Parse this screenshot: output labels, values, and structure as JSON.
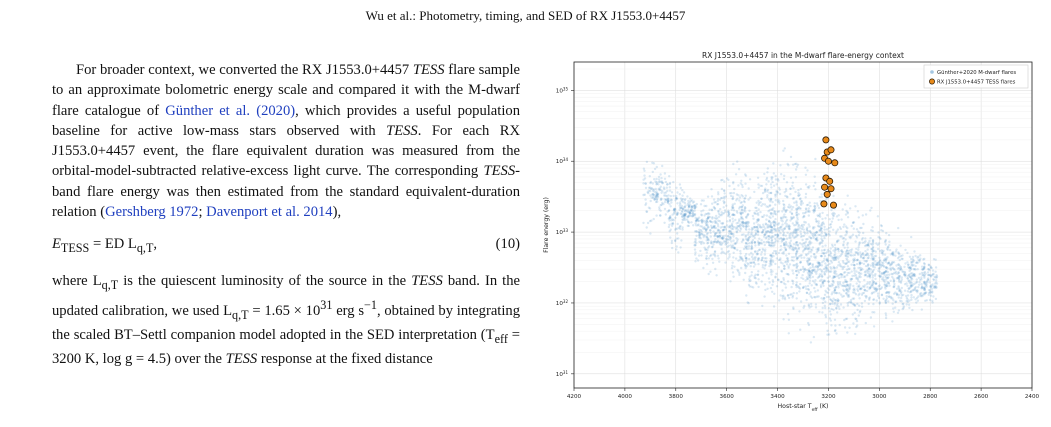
{
  "running_head": "Wu et al.: Photometry, timing, and SED of RX J1553.0+4457",
  "body": {
    "p1_a": "For broader context, we converted the RX J1553.0+4457 ",
    "p1_tess1": "TESS",
    "p1_b": " flare sample to an approximate bolometric energy scale and compared it with the M-dwarf flare catalogue of ",
    "p1_cite1": "Günther et al. (2020)",
    "p1_c": ", which provides a useful population baseline for active low-mass stars observed with ",
    "p1_tess2": "TESS",
    "p1_d": ". For each RX J1553.0+4457 event, the flare equivalent duration was measured from the orbital-model-subtracted relative-excess light curve. The corresponding ",
    "p1_tess3": "TESS",
    "p1_e": "-band flare energy was then estimated from the standard equivalent-duration relation (",
    "p1_cite2": "Gershberg 1972",
    "p1_f": "; ",
    "p1_cite3": "Davenport et al. 2014",
    "p1_g": "),",
    "equation_lhs": "E",
    "equation_lhs_sub": "TESS",
    "equation_mid": " = ED L",
    "equation_mid_sub": "q,T",
    "equation_end": ",",
    "equation_number": "(10)",
    "p2_a": "where L",
    "p2_sub": "q,T",
    "p2_b": " is the quiescent luminosity of the source in the ",
    "p2_tess": "TESS",
    "p2_c": " band. In the updated calibration, we used L",
    "p2_sub2": "q,T",
    "p2_d": " = 1.65 × 10",
    "p2_exp": "31",
    "p2_e": " erg s",
    "p2_exp2": "−1",
    "p2_f": ", obtained by integrating the scaled BT–Settl companion model adopted in the SED interpretation (T",
    "p2_sub3": "eff",
    "p2_g": " = 3200 K, log g = 4.5) over the ",
    "p2_tess2": "TESS",
    "p2_h": " response at the fixed distance"
  },
  "figure": {
    "title": "RX J1553.0+4457 in the M-dwarf flare-energy context",
    "xlabel": "Host-star T_eff (K)",
    "ylabel": "Flare energy (erg)",
    "x_ticks": [
      "4200",
      "4000",
      "3800",
      "3600",
      "3400",
      "3200",
      "3000",
      "2800",
      "2600",
      "2400"
    ],
    "y_ticks": [
      "10^31",
      "10^32",
      "10^33",
      "10^34",
      "10^35"
    ],
    "legend": [
      "Günther+2020 M-dwarf flares",
      "RX J1553.0+4457 TESS flares"
    ],
    "colors": {
      "population": "#4a8fc7",
      "target_fill": "#e88a1a",
      "target_edge": "#2b1a05",
      "grid": "#d9d9d9"
    }
  },
  "chart_data": {
    "type": "scatter",
    "title": "RX J1553.0+4457 in the M-dwarf flare-energy context",
    "xlabel": "Host-star T_eff (K)",
    "ylabel": "Flare energy (erg)",
    "xlim": [
      4200,
      2400
    ],
    "ylim_log10": [
      30.8,
      35.4
    ],
    "y_scale": "log",
    "grid": true,
    "legend_position": "top-right",
    "series": [
      {
        "name": "Günther+2020 M-dwarf flares",
        "marker": "small translucent circles",
        "density_model": "vertical column at each stellar temperature, dense between ~3600 K and ~3100 K",
        "columns": [
          {
            "teff": 3900,
            "logE_range": [
              32.9,
              34.2
            ]
          },
          {
            "teff": 3850,
            "logE_range": [
              33.1,
              34.0
            ]
          },
          {
            "teff": 3800,
            "logE_range": [
              32.6,
              33.9
            ]
          },
          {
            "teff": 3750,
            "logE_range": [
              33.0,
              33.6
            ]
          },
          {
            "teff": 3700,
            "logE_range": [
              32.4,
              33.6
            ]
          },
          {
            "teff": 3650,
            "logE_range": [
              32.3,
              33.8
            ]
          },
          {
            "teff": 3600,
            "logE_range": [
              32.2,
              34.0
            ]
          },
          {
            "teff": 3550,
            "logE_range": [
              32.0,
              34.2
            ]
          },
          {
            "teff": 3500,
            "logE_range": [
              31.8,
              34.0
            ]
          },
          {
            "teff": 3450,
            "logE_range": [
              31.8,
              34.2
            ]
          },
          {
            "teff": 3400,
            "logE_range": [
              31.6,
              34.3
            ]
          },
          {
            "teff": 3350,
            "logE_range": [
              31.5,
              34.4
            ]
          },
          {
            "teff": 3300,
            "logE_range": [
              31.4,
              34.3
            ]
          },
          {
            "teff": 3250,
            "logE_range": [
              31.3,
              34.2
            ]
          },
          {
            "teff": 3200,
            "logE_range": [
              31.2,
              34.0
            ]
          },
          {
            "teff": 3150,
            "logE_range": [
              31.3,
              33.8
            ]
          },
          {
            "teff": 3100,
            "logE_range": [
              31.4,
              33.6
            ]
          },
          {
            "teff": 3050,
            "logE_range": [
              31.5,
              33.5
            ]
          },
          {
            "teff": 3000,
            "logE_range": [
              31.6,
              33.3
            ]
          },
          {
            "teff": 2950,
            "logE_range": [
              31.6,
              33.2
            ]
          },
          {
            "teff": 2900,
            "logE_range": [
              31.7,
              33.0
            ]
          },
          {
            "teff": 2850,
            "logE_range": [
              31.8,
              32.9
            ]
          },
          {
            "teff": 2800,
            "logE_range": [
              31.9,
              32.7
            ]
          }
        ]
      },
      {
        "name": "RX J1553.0+4457 TESS flares",
        "points": [
          {
            "x": 3210,
            "y": 2e+34
          },
          {
            "x": 3205,
            "y": 1.35e+34
          },
          {
            "x": 3190,
            "y": 1.45e+34
          },
          {
            "x": 3215,
            "y": 1.1e+34
          },
          {
            "x": 3200,
            "y": 1e+34
          },
          {
            "x": 3175,
            "y": 9.5e+33
          },
          {
            "x": 3210,
            "y": 5.8e+33
          },
          {
            "x": 3195,
            "y": 5.2e+33
          },
          {
            "x": 3215,
            "y": 4.3e+33
          },
          {
            "x": 3190,
            "y": 4.1e+33
          },
          {
            "x": 3205,
            "y": 3.4e+33
          },
          {
            "x": 3218,
            "y": 2.5e+33
          },
          {
            "x": 3180,
            "y": 2.4e+33
          }
        ]
      }
    ]
  }
}
